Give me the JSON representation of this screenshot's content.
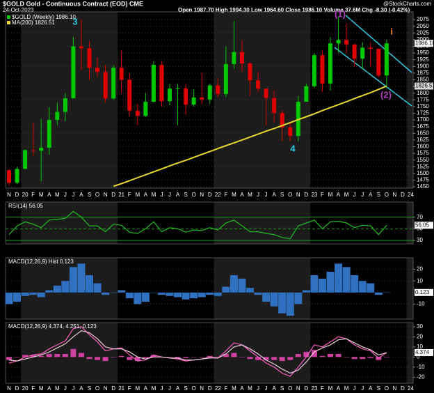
{
  "chart_data": [
    {
      "type": "candlestick",
      "title": "$GOLD Gold - Continuous Contract (EOD) CME",
      "subtitle": "24-Oct-2023",
      "quote": "Open 1987.70  High 1994.30  Low 1964.60  Close 1986.10  Volume 37.6M  Chg -8.30 (-0.42%)",
      "source": "@StockCharts.com",
      "categories": [
        "N",
        "D",
        "20",
        "F",
        "M",
        "A",
        "M",
        "J",
        "J",
        "A",
        "S",
        "O",
        "N",
        "D",
        "21",
        "F",
        "M",
        "A",
        "M",
        "J",
        "J",
        "A",
        "S",
        "O",
        "N",
        "D",
        "22",
        "F",
        "M",
        "A",
        "M",
        "J",
        "J",
        "A",
        "S",
        "O",
        "N",
        "D",
        "23",
        "F",
        "M",
        "A",
        "M",
        "J",
        "J",
        "A",
        "S",
        "O",
        "N",
        "D",
        "24"
      ],
      "candles": {
        "name": "$GOLD (Weekly) 1986.10",
        "last_label": "1986.10",
        "up_color": "#00c800",
        "down_color": "#e00000",
        "open": [
          1512,
          1465,
          1517,
          1587,
          1585,
          1596,
          1700,
          1730,
          1781,
          1975,
          1968,
          1895,
          1879,
          1780,
          1895,
          1850,
          1734,
          1715,
          1768,
          1906,
          1770,
          1817,
          1818,
          1757,
          1784,
          1776,
          1829,
          1797,
          1909,
          1954,
          1911,
          1848,
          1817,
          1782,
          1726,
          1672,
          1640,
          1768,
          1826,
          1942,
          1836,
          1986,
          1999,
          1982,
          1929,
          1970,
          1966,
          1866,
          null,
          null,
          null
        ],
        "high": [
          1515,
          1525,
          1590,
          1690,
          1705,
          1748,
          1765,
          1800,
          2010,
          2075,
          1995,
          1935,
          1905,
          1905,
          1960,
          1875,
          1760,
          1800,
          1920,
          1920,
          1835,
          1835,
          1835,
          1815,
          1877,
          1835,
          1855,
          1975,
          2070,
          1998,
          1915,
          1880,
          1815,
          1810,
          1735,
          1690,
          1790,
          1835,
          1950,
          1960,
          2010,
          2085,
          2060,
          1985,
          1990,
          1990,
          1950,
          2000,
          null,
          null,
          null
        ],
        "low": [
          1455,
          1460,
          1515,
          1565,
          1470,
          1570,
          1680,
          1695,
          1780,
          1885,
          1850,
          1860,
          1765,
          1775,
          1800,
          1715,
          1680,
          1710,
          1765,
          1750,
          1755,
          1680,
          1720,
          1750,
          1760,
          1760,
          1785,
          1785,
          1890,
          1880,
          1790,
          1805,
          1680,
          1690,
          1620,
          1620,
          1620,
          1770,
          1820,
          1805,
          1810,
          1950,
          1950,
          1900,
          1890,
          1900,
          1860,
          1820,
          null,
          null,
          null
        ],
        "close": [
          1465,
          1517,
          1587,
          1585,
          1596,
          1700,
          1730,
          1781,
          1975,
          1968,
          1895,
          1879,
          1780,
          1895,
          1850,
          1734,
          1715,
          1768,
          1906,
          1770,
          1817,
          1818,
          1757,
          1784,
          1776,
          1829,
          1797,
          1909,
          1954,
          1911,
          1848,
          1817,
          1782,
          1726,
          1672,
          1640,
          1768,
          1826,
          1942,
          1836,
          1986,
          1999,
          1982,
          1929,
          1970,
          1966,
          1866,
          1986.1,
          null,
          null,
          null
        ]
      },
      "series": [
        {
          "name": "MA(200) 1826.51",
          "last_label": "1826.51",
          "color": "#e8d830",
          "values": [
            null,
            null,
            null,
            null,
            null,
            null,
            null,
            null,
            null,
            null,
            null,
            null,
            null,
            1452,
            1462,
            1473,
            1484,
            1495,
            1506,
            1517,
            1528,
            1539,
            1549,
            1560,
            1571,
            1582,
            1593,
            1604,
            1614,
            1625,
            1636,
            1647,
            1658,
            1668,
            1679,
            1690,
            1701,
            1712,
            1723,
            1735,
            1746,
            1757,
            1768,
            1780,
            1791,
            1802,
            1814,
            1826.51,
            null,
            null,
            null
          ]
        }
      ],
      "ylim": [
        1445,
        2104
      ],
      "yticks": [
        1450,
        1475,
        1500,
        1525,
        1550,
        1575,
        1600,
        1625,
        1650,
        1675,
        1700,
        1725,
        1750,
        1775,
        1800,
        1825,
        1850,
        1875,
        1900,
        1925,
        1950,
        1975,
        2000,
        2025,
        2050,
        2075
      ],
      "annotations": [
        {
          "text": "3",
          "color": "#30d0e0"
        },
        {
          "text": "4",
          "color": "#30d0e0"
        },
        {
          "text": "(1)",
          "color": "#b040c0"
        },
        {
          "text": "(2)",
          "color": "#b040c0"
        },
        {
          "text": "i",
          "color": "#f08020"
        }
      ]
    },
    {
      "type": "line",
      "title": "RSI(14) 56.05",
      "series": [
        {
          "name": "RSI(14)",
          "last_label": "56.05",
          "color": "#20c020",
          "values": [
            40,
            55,
            62,
            58,
            52,
            65,
            66,
            68,
            80,
            70,
            55,
            55,
            45,
            58,
            56,
            44,
            42,
            50,
            62,
            45,
            52,
            50,
            44,
            48,
            47,
            52,
            48,
            60,
            65,
            55,
            45,
            45,
            42,
            40,
            35,
            33,
            55,
            60,
            65,
            50,
            62,
            63,
            60,
            52,
            56,
            55,
            40,
            56.05,
            null,
            null,
            null
          ]
        }
      ],
      "ylim": [
        24,
        96
      ],
      "yticks": [
        30,
        50,
        70
      ]
    },
    {
      "type": "bar",
      "title": "MACD(12,26,9) Hist 0.123",
      "color": "#3070c0",
      "last_label": "0.123",
      "values": [
        -10,
        -8,
        -3,
        -2,
        -4,
        2,
        6,
        10,
        22,
        25,
        15,
        8,
        -2,
        0,
        2,
        -5,
        -10,
        -8,
        0,
        -2,
        -3,
        -4,
        -6,
        -5,
        -4,
        -2,
        -3,
        5,
        15,
        12,
        4,
        -2,
        -8,
        -12,
        -18,
        -20,
        -10,
        2,
        15,
        12,
        18,
        25,
        22,
        15,
        10,
        8,
        -2,
        0.123,
        null,
        null,
        null
      ],
      "ylim": [
        -23,
        30
      ],
      "yticks": [
        -10,
        10,
        20
      ]
    },
    {
      "type": "line",
      "title": "MACD(12,26,9) 4.374, 4.251, 0.123",
      "last_label": "4.374",
      "series": [
        {
          "name": "MACD",
          "color": "#ff60c0",
          "values": [
            -6,
            -4,
            0,
            2,
            3,
            8,
            12,
            16,
            28,
            30,
            22,
            15,
            6,
            8,
            9,
            2,
            -4,
            -3,
            2,
            0,
            -1,
            -2,
            -4,
            -3,
            -2,
            0,
            -1,
            6,
            14,
            12,
            6,
            0,
            -6,
            -10,
            -16,
            -19,
            -10,
            0,
            12,
            10,
            15,
            20,
            18,
            12,
            8,
            6,
            -1,
            4.374,
            null,
            null,
            null
          ]
        },
        {
          "name": "Signal",
          "color": "#f0d0e0",
          "values": [
            -3,
            -4,
            -2,
            0,
            2,
            5,
            9,
            13,
            20,
            26,
            24,
            18,
            10,
            8,
            8,
            5,
            0,
            -2,
            0,
            0,
            -1,
            -1,
            -3,
            -3,
            -2,
            -1,
            -1,
            3,
            10,
            12,
            8,
            3,
            -3,
            -7,
            -12,
            -16,
            -13,
            -5,
            5,
            9,
            12,
            17,
            18,
            14,
            10,
            7,
            2,
            4.251,
            null,
            null,
            null
          ]
        }
      ],
      "histogram": {
        "color": "#d040a0",
        "values": [
          -3,
          0,
          2,
          2,
          1,
          3,
          3,
          3,
          8,
          4,
          -2,
          -3,
          -4,
          0,
          1,
          -3,
          -4,
          -1,
          2,
          0,
          0,
          -1,
          -1,
          0,
          0,
          1,
          0,
          3,
          4,
          0,
          -2,
          -3,
          -3,
          -3,
          -4,
          -3,
          3,
          5,
          7,
          1,
          3,
          3,
          0,
          -2,
          -2,
          -1,
          -3,
          0.123,
          null,
          null,
          null
        ]
      },
      "ylim": [
        -26,
        34
      ],
      "yticks": [
        -20,
        -10,
        0,
        10,
        20,
        30
      ]
    }
  ]
}
